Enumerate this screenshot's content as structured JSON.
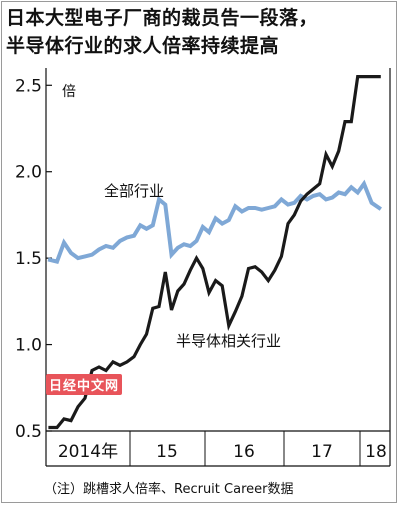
{
  "title_lines": [
    "日本大型电子厂商的裁员告一段落，",
    "半导体行业的求人倍率持续提高"
  ],
  "unit": "倍",
  "note": "（注）跳槽求人倍率、Recruit Career数据",
  "watermark": "日经中文网",
  "colors": {
    "all_industries": "#7fa8d6",
    "semiconductor": "#1a1a1a",
    "axis": "#111111",
    "grid": "#222222"
  },
  "chart_data": {
    "type": "line",
    "title": "日本大型电子厂商的裁员告一段落，半导体行业的求人倍率持续提高",
    "xlabel": "",
    "ylabel": "倍",
    "ylim": [
      0.5,
      2.6
    ],
    "yticks": [
      0.5,
      1.0,
      1.5,
      2.0,
      2.5
    ],
    "ytick_labels": [
      "0.5",
      "1.0",
      "1.5",
      "2.0",
      "2.5"
    ],
    "year_labels": [
      "2014年",
      "15",
      "16",
      "17",
      "18"
    ],
    "x_start": "2014-01",
    "x_end": "2018-03",
    "x": [
      "2014-01",
      "2014-02",
      "2014-03",
      "2014-04",
      "2014-05",
      "2014-06",
      "2014-07",
      "2014-08",
      "2014-09",
      "2014-10",
      "2014-11",
      "2014-12",
      "2015-01",
      "2015-02",
      "2015-03",
      "2015-04",
      "2015-05",
      "2015-06",
      "2015-07",
      "2015-08",
      "2015-09",
      "2015-10",
      "2015-11",
      "2015-12",
      "2016-01",
      "2016-02",
      "2016-03",
      "2016-04",
      "2016-05",
      "2016-06",
      "2016-07",
      "2016-08",
      "2016-09",
      "2016-10",
      "2016-11",
      "2016-12",
      "2017-01",
      "2017-02",
      "2017-03",
      "2017-04",
      "2017-05",
      "2017-06",
      "2017-07",
      "2017-08",
      "2017-09",
      "2017-10",
      "2017-11",
      "2017-12",
      "2018-01",
      "2018-02",
      "2018-03"
    ],
    "series": [
      {
        "name": "全部行业",
        "color": "#7fa8d6",
        "values": [
          1.49,
          1.48,
          1.59,
          1.53,
          1.5,
          1.51,
          1.52,
          1.55,
          1.57,
          1.56,
          1.6,
          1.62,
          1.63,
          1.69,
          1.67,
          1.69,
          1.84,
          1.81,
          1.52,
          1.56,
          1.58,
          1.57,
          1.6,
          1.68,
          1.65,
          1.73,
          1.7,
          1.72,
          1.8,
          1.77,
          1.79,
          1.79,
          1.78,
          1.79,
          1.8,
          1.84,
          1.81,
          1.82,
          1.86,
          1.84,
          1.86,
          1.87,
          1.84,
          1.85,
          1.88,
          1.87,
          1.91,
          1.88,
          1.93,
          1.82,
          1.79
        ]
      },
      {
        "name": "半导体相关行业",
        "color": "#1a1a1a",
        "values": [
          0.52,
          0.52,
          0.57,
          0.56,
          0.64,
          0.69,
          0.85,
          0.87,
          0.85,
          0.9,
          0.88,
          0.9,
          0.93,
          1.0,
          1.06,
          1.21,
          1.22,
          1.42,
          1.2,
          1.31,
          1.35,
          1.43,
          1.5,
          1.44,
          1.3,
          1.37,
          1.34,
          1.11,
          1.19,
          1.28,
          1.44,
          1.45,
          1.42,
          1.37,
          1.43,
          1.51,
          1.7,
          1.75,
          1.83,
          1.87,
          1.9,
          1.93,
          2.1,
          2.03,
          2.12,
          2.29,
          2.29,
          2.55,
          2.55,
          2.55,
          2.55
        ]
      }
    ],
    "annotations": [
      {
        "text": "全部行业",
        "series": "全部行业"
      },
      {
        "text": "半导体相关行业",
        "series": "半导体相关行业"
      }
    ],
    "grid": false,
    "legend": "inline"
  }
}
